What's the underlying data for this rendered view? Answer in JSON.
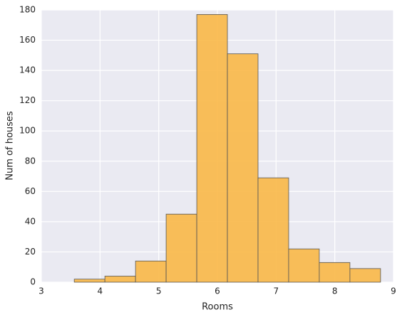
{
  "chart_data": {
    "type": "histogram",
    "x_label": "Rooms",
    "y_label": "Num of houses",
    "bins": [
      3.561,
      4.0829,
      4.6048,
      5.1267,
      5.6486,
      6.1705,
      6.6924,
      7.2143,
      7.7362,
      8.2581,
      8.78
    ],
    "counts": [
      2,
      4,
      14,
      45,
      177,
      151,
      69,
      22,
      13,
      9
    ],
    "color": "#f9b847",
    "edge_color": "#555555",
    "xlim": [
      3,
      9
    ],
    "xticks": [
      3,
      4,
      5,
      6,
      7,
      8,
      9
    ],
    "ylim": [
      0,
      180
    ],
    "yticks": [
      0,
      20,
      40,
      60,
      80,
      100,
      120,
      140,
      160,
      180
    ],
    "grid": true
  }
}
